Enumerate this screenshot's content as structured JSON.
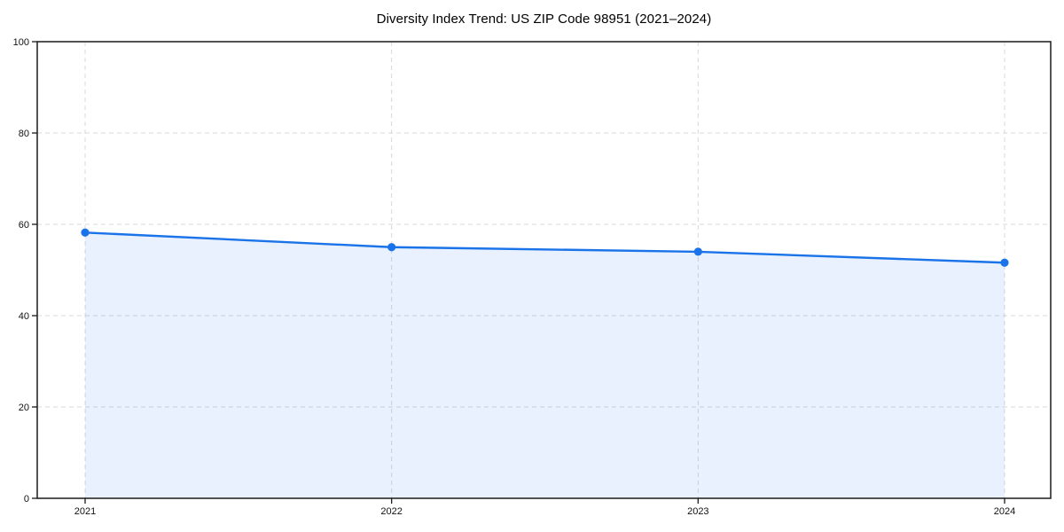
{
  "page": {
    "background": "#ffffff"
  },
  "chart_data": {
    "type": "area",
    "title": "Diversity Index Trend: US ZIP Code 98951 (2021–2024)",
    "categories": [
      "2021",
      "2022",
      "2023",
      "2024"
    ],
    "values": [
      58.2,
      55,
      54,
      51.6
    ],
    "xlabel": "",
    "ylabel": "",
    "ylim": [
      0,
      100
    ],
    "yticks": [
      0,
      20,
      40,
      60,
      80,
      100
    ],
    "grid": {
      "visible": true,
      "style": "dashed",
      "axes": "both"
    },
    "legend": {
      "visible": false
    },
    "marker": "circle",
    "colors": {
      "line": "#1a73e8",
      "marker": "#1a73e8",
      "fill": "rgba(26,115,232,0.10)",
      "grid": "#d9d9d9",
      "spine": "#1a1a1a",
      "tick_text": "#111111",
      "title_text": "#000000",
      "background": "#ffffff"
    }
  }
}
